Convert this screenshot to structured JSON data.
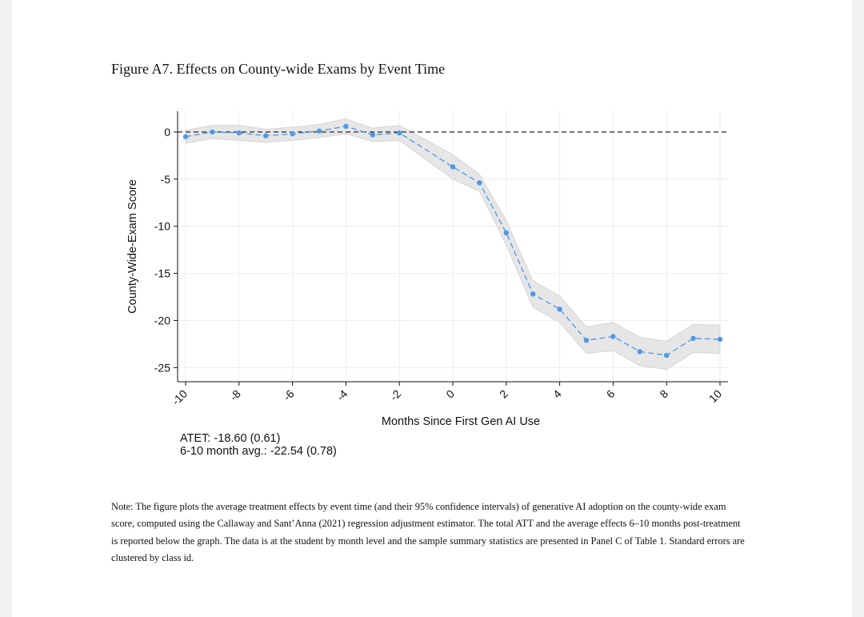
{
  "figure": {
    "title": "Figure A7. Effects on County-wide Exams by Event Time",
    "note": "Note: The figure plots the average treatment effects by event time (and their 95% confidence intervals) of generative AI adoption on the county-wide exam score, computed using the Callaway and Sant’Anna (2021) regression adjustment estimator. The total ATT and the average effects 6–10 months post-treatment is reported below the graph. The data is at the student by month level and the sample summary statistics are presented in Panel C of Table 1. Standard errors are clustered by class id."
  },
  "stats": {
    "atet": "ATET: -18.60 (0.61)",
    "avg": "6-10 month avg.: -22.54 (0.78)"
  },
  "chart_data": {
    "type": "line",
    "xlabel": "Months Since First Gen AI Use",
    "ylabel": "County-Wide-Exam Score",
    "xlim": [
      -10,
      10
    ],
    "ylim": [
      -26.5,
      2.2
    ],
    "xticks": [
      -10,
      -8,
      -6,
      -4,
      -2,
      0,
      2,
      4,
      6,
      8,
      10
    ],
    "xtick_labels": [
      "-10",
      "-8",
      "-6",
      "-4",
      "-2",
      "0",
      "2",
      "4",
      "6",
      "8",
      "10"
    ],
    "yticks": [
      0,
      -5,
      -10,
      -15,
      -20,
      -25
    ],
    "ytick_labels": [
      "0",
      "-5",
      "-10",
      "-15",
      "-20",
      "-25"
    ],
    "reference_line": 0,
    "grid": true,
    "series": [
      {
        "x": [
          -10,
          -9,
          -8,
          -7,
          -6,
          -5,
          -4,
          -3,
          -2,
          0,
          1,
          2,
          3,
          4,
          5,
          6,
          7,
          8,
          9,
          10
        ],
        "values": [
          -0.5,
          0.0,
          -0.1,
          -0.4,
          -0.2,
          0.1,
          0.6,
          -0.3,
          -0.1,
          -3.7,
          -5.4,
          -10.7,
          -17.2,
          -18.8,
          -22.1,
          -21.7,
          -23.3,
          -23.7,
          -21.9,
          -22.0
        ],
        "ci_lower": [
          -1.2,
          -0.7,
          -0.9,
          -1.1,
          -0.9,
          -0.6,
          -0.2,
          -1.0,
          -0.9,
          -5.0,
          -6.3,
          -12.0,
          -18.6,
          -20.2,
          -23.5,
          -23.2,
          -24.8,
          -25.2,
          -23.4,
          -23.5
        ],
        "ci_upper": [
          0.2,
          0.7,
          0.7,
          0.3,
          0.5,
          0.8,
          1.4,
          0.4,
          0.7,
          -2.4,
          -4.5,
          -9.4,
          -15.8,
          -17.4,
          -20.7,
          -20.2,
          -21.8,
          -22.2,
          -20.4,
          -20.5
        ],
        "color": "#4f97ea",
        "ci_color": "#e6e6e6"
      }
    ]
  }
}
